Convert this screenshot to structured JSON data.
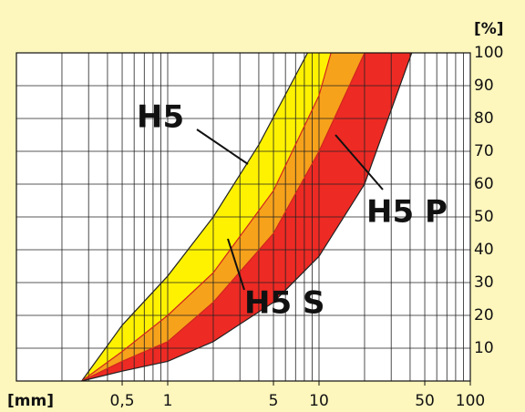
{
  "chart_data": {
    "type": "band",
    "x_unit": "[mm]",
    "y_unit": "[%]",
    "xscale": "log",
    "xlim": [
      0.1,
      100
    ],
    "ylim": [
      0,
      100
    ],
    "xticks": [
      {
        "value": 0.5,
        "label": "0,5"
      },
      1,
      5,
      10,
      50,
      100
    ],
    "xgrid": [
      0.2,
      0.3,
      0.4,
      0.5,
      0.6,
      0.7,
      0.8,
      0.9,
      1,
      2,
      3,
      4,
      5,
      6,
      7,
      8,
      9,
      10,
      20,
      30,
      40,
      50,
      60,
      70,
      80,
      90
    ],
    "yticks": [
      10,
      20,
      30,
      40,
      50,
      60,
      70,
      80,
      90,
      100
    ],
    "grid": true,
    "boundaries": [
      {
        "x": [
          0.27,
          0.5,
          1,
          2,
          4,
          8.4
        ],
        "values": [
          0,
          17,
          32,
          50,
          72,
          100
        ]
      },
      {
        "x": [
          0.27,
          0.5,
          1,
          2,
          5,
          10,
          12
        ],
        "values": [
          0,
          9,
          20,
          33,
          58,
          87,
          100
        ]
      },
      {
        "x": [
          0.27,
          0.5,
          1,
          2,
          5,
          10,
          20
        ],
        "values": [
          0,
          6,
          12,
          24,
          45,
          70,
          100
        ]
      },
      {
        "x": [
          0.27,
          0.5,
          1,
          2,
          5,
          10,
          20,
          41
        ],
        "values": [
          0,
          3,
          6,
          12,
          24,
          38,
          60,
          100
        ]
      }
    ],
    "bands": [
      {
        "name": "H5",
        "color": "#fff200"
      },
      {
        "name": "H5 S",
        "color": "#f7a21b"
      },
      {
        "name": "H5 P",
        "color": "#ee2a24"
      }
    ]
  }
}
